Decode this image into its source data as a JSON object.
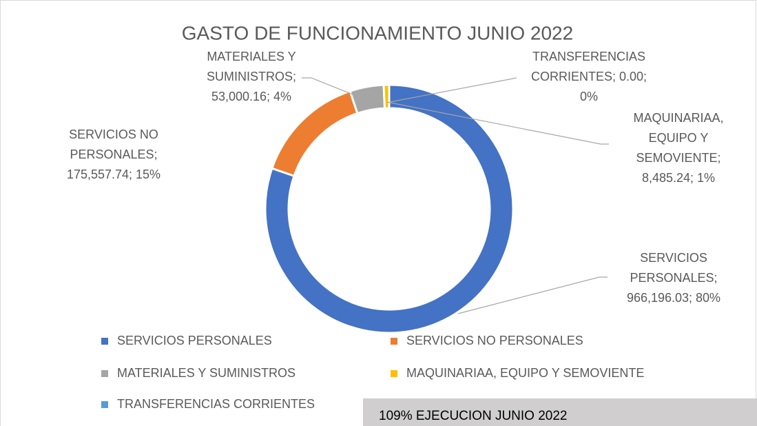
{
  "chart_data": {
    "type": "donut",
    "title": "GASTO DE FUNCIONAMIENTO JUNIO 2022",
    "categories": [
      "SERVICIOS PERSONALES",
      "SERVICIOS NO PERSONALES",
      "MATERIALES Y SUMINISTROS",
      "MAQUINARIAA, EQUIPO Y SEMOVIENTE",
      "TRANSFERENCIAS CORRIENTES"
    ],
    "values": [
      966196.03,
      175557.74,
      53000.16,
      8485.24,
      0.0
    ],
    "value_labels": [
      "SERVICIOS PERSONALES; 966,196.03; 80%",
      "SERVICIOS NO PERSONALES; 175,557.74; 15%",
      "MATERIALES Y SUMINISTROS; 53,000.16; 4%",
      "MAQUINARIAA, EQUIPO Y SEMOVIENTE; 8,485.24; 1%",
      "TRANSFERENCIAS CORRIENTES; 0.00; 0%"
    ],
    "colors": [
      "#4472c4",
      "#ed7d31",
      "#a5a5a5",
      "#ffc000",
      "#5b9bd5"
    ],
    "legend": "bottom",
    "footer": "109% EJECUCION JUNIO 2022"
  }
}
